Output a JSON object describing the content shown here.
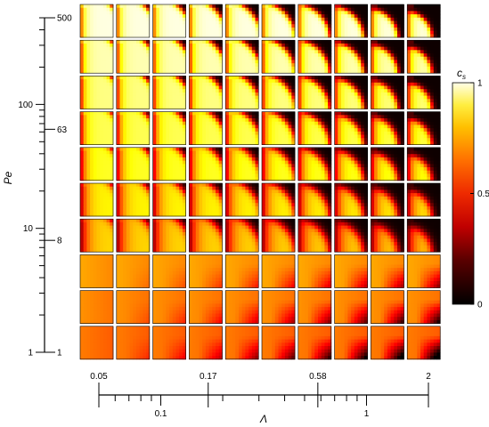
{
  "chart_data": {
    "type": "heatmap",
    "description_grid": {
      "rows": 10,
      "cols": 10
    },
    "y_axis": {
      "label": "Pe",
      "scale": "log",
      "range": [
        1,
        500
      ],
      "major_ticks": [
        {
          "value": 1,
          "label": "1"
        },
        {
          "value": 10,
          "label": "10"
        },
        {
          "value": 100,
          "label": "100"
        }
      ],
      "row_labels": [
        {
          "value": 500,
          "label": "500"
        },
        {
          "value": 63,
          "label": "63"
        },
        {
          "value": 8,
          "label": "8"
        },
        {
          "value": 1,
          "label": "1"
        }
      ]
    },
    "x_axis": {
      "label": "Λ",
      "scale": "log",
      "range": [
        0.05,
        2
      ],
      "major_ticks": [
        {
          "value": 0.1,
          "label": "0.1"
        },
        {
          "value": 1,
          "label": "1"
        }
      ],
      "col_labels": [
        {
          "value": 0.05,
          "label": "0.05"
        },
        {
          "value": 0.17,
          "label": "0.17"
        },
        {
          "value": 0.58,
          "label": "0.58"
        },
        {
          "value": 2,
          "label": "2"
        }
      ]
    },
    "colorbar": {
      "label": "c",
      "label_subscript": "s",
      "min": 0,
      "max": 1,
      "ticks": [
        {
          "value": 0,
          "label": "0"
        },
        {
          "value": 0.5,
          "label": "0.5"
        },
        {
          "value": 1,
          "label": "1"
        }
      ],
      "colormap": "hot"
    }
  }
}
